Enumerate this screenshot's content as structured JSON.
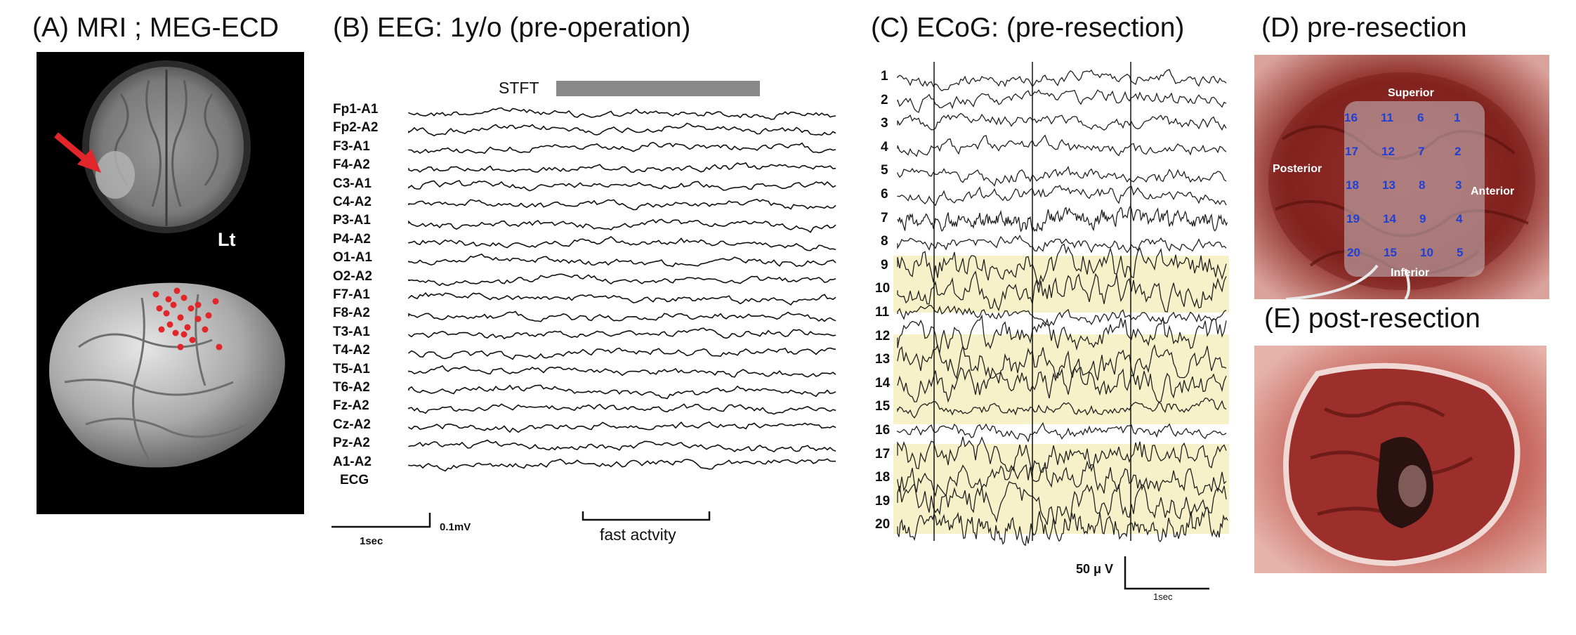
{
  "panels": {
    "a": {
      "title": "(A) MRI ; MEG-ECD",
      "lt_label": "Lt"
    },
    "b": {
      "title": "(B) EEG: 1y/o (pre-operation)",
      "stft_label": "STFT",
      "scale_time": "1sec",
      "scale_amp": "0.1mV",
      "fast_label": "fast actvity",
      "channels": [
        "Fp1-A1",
        "Fp2-A2",
        "F3-A1",
        "F4-A2",
        "C3-A1",
        "C4-A2",
        "P3-A1",
        "P4-A2",
        "O1-A1",
        "O2-A2",
        "F7-A1",
        "F8-A2",
        "T3-A1",
        "T4-A2",
        "T5-A1",
        "T6-A2",
        "Fz-A2",
        "Cz-A2",
        "Pz-A2",
        "A1-A2",
        "ECG"
      ]
    },
    "c": {
      "title": "(C) ECoG: (pre-resection)",
      "channels": [
        "1",
        "2",
        "3",
        "4",
        "5",
        "6",
        "7",
        "8",
        "9",
        "10",
        "11",
        "12",
        "13",
        "14",
        "15",
        "16",
        "17",
        "18",
        "19",
        "20"
      ],
      "scale_amp": "50 μ V",
      "scale_time": "1sec",
      "highlight_color": "#f6f1c8"
    },
    "d": {
      "title": "(D) pre-resection",
      "superior": "Superior",
      "posterior": "Posterior",
      "anterior": "Anterior",
      "inferior": "Inferior",
      "electrodes": [
        "16",
        "11",
        "6",
        "1",
        "17",
        "12",
        "7",
        "2",
        "18",
        "13",
        "8",
        "3",
        "19",
        "14",
        "9",
        "4",
        "20",
        "15",
        "10",
        "5"
      ]
    },
    "e": {
      "title": "(E) post-resection"
    }
  },
  "colors": {
    "meg_dot": "#e0262b",
    "arrow": "#e0262b",
    "electrode_num": "#1f3fd6",
    "stft_bar": "#888888"
  }
}
